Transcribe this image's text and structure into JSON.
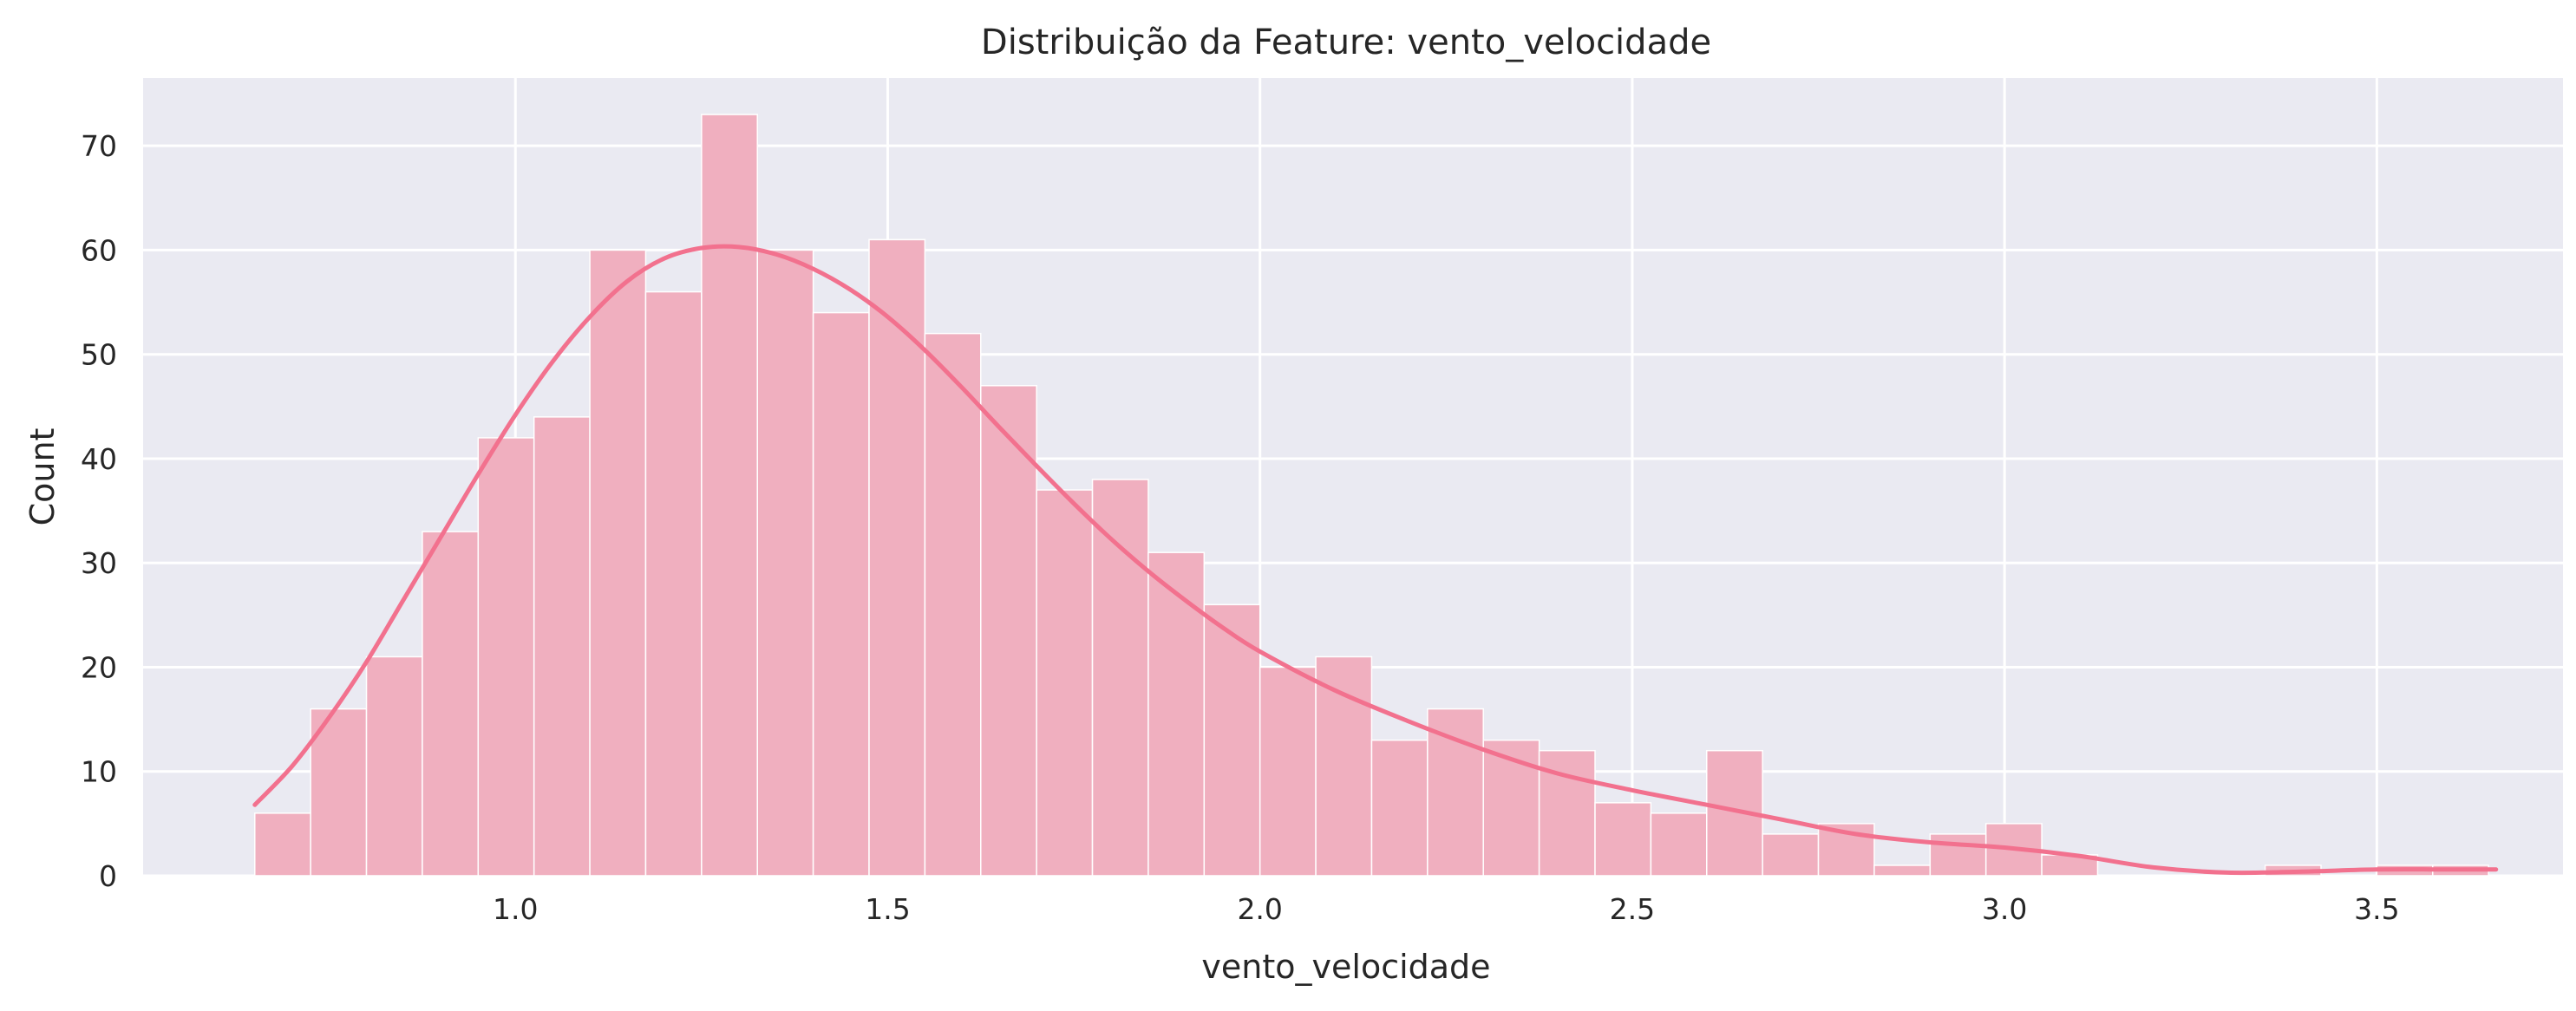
{
  "chart_data": {
    "type": "bar",
    "title": "Distribuição da Feature: vento_velocidade",
    "xlabel": "vento_velocidade",
    "ylabel": "Count",
    "xlim": [
      0.5,
      3.75
    ],
    "ylim": [
      0,
      76.5
    ],
    "xticks": [
      1.0,
      1.5,
      2.0,
      2.5,
      3.0,
      3.5
    ],
    "xtick_labels": [
      "1.0",
      "1.5",
      "2.0",
      "2.5",
      "3.0",
      "3.5"
    ],
    "yticks": [
      0,
      10,
      20,
      30,
      40,
      50,
      60,
      70
    ],
    "ytick_labels": [
      "0",
      "10",
      "20",
      "30",
      "40",
      "50",
      "60",
      "70"
    ],
    "grid": true,
    "bin_edges": [
      0.65,
      0.725,
      0.8,
      0.875,
      0.95,
      1.025,
      1.1,
      1.175,
      1.25,
      1.325,
      1.4,
      1.475,
      1.55,
      1.625,
      1.7,
      1.775,
      1.85,
      1.925,
      2.0,
      2.075,
      2.15,
      2.225,
      2.3,
      2.375,
      2.45,
      2.525,
      2.6,
      2.675,
      2.75,
      2.825,
      2.9,
      2.975,
      3.05,
      3.125,
      3.2,
      3.275,
      3.35,
      3.425,
      3.5,
      3.575,
      3.65
    ],
    "counts": [
      6,
      16,
      21,
      33,
      42,
      44,
      60,
      56,
      73,
      60,
      54,
      61,
      52,
      47,
      37,
      38,
      31,
      26,
      20,
      21,
      13,
      16,
      13,
      12,
      7,
      6,
      12,
      4,
      5,
      1,
      4,
      5,
      2,
      0,
      0,
      0,
      1,
      0,
      1,
      1
    ],
    "kde": {
      "x": [
        0.65,
        0.7,
        0.75,
        0.8,
        0.85,
        0.9,
        0.95,
        1.0,
        1.05,
        1.1,
        1.15,
        1.2,
        1.25,
        1.3,
        1.35,
        1.4,
        1.45,
        1.5,
        1.55,
        1.6,
        1.65,
        1.7,
        1.75,
        1.8,
        1.85,
        1.9,
        1.95,
        2.0,
        2.1,
        2.2,
        2.3,
        2.4,
        2.5,
        2.6,
        2.7,
        2.8,
        2.9,
        3.0,
        3.1,
        3.2,
        3.3,
        3.4,
        3.5,
        3.6,
        3.66
      ],
      "y": [
        6.8,
        10.5,
        15.2,
        20.5,
        26.5,
        32.5,
        38.5,
        44.2,
        49.3,
        53.6,
        57.0,
        59.2,
        60.2,
        60.3,
        59.6,
        58.2,
        56.2,
        53.6,
        50.4,
        46.8,
        43.0,
        39.3,
        35.7,
        32.3,
        29.2,
        26.4,
        23.8,
        21.5,
        17.8,
        14.8,
        12.1,
        9.8,
        8.2,
        6.8,
        5.4,
        4.0,
        3.2,
        2.7,
        1.9,
        0.8,
        0.3,
        0.4,
        0.6,
        0.6,
        0.6
      ]
    },
    "colors": {
      "bar_fill": "#f0afbf",
      "kde_line": "#f2718e",
      "plot_background": "#eaeaf2",
      "grid": "#ffffff"
    }
  }
}
